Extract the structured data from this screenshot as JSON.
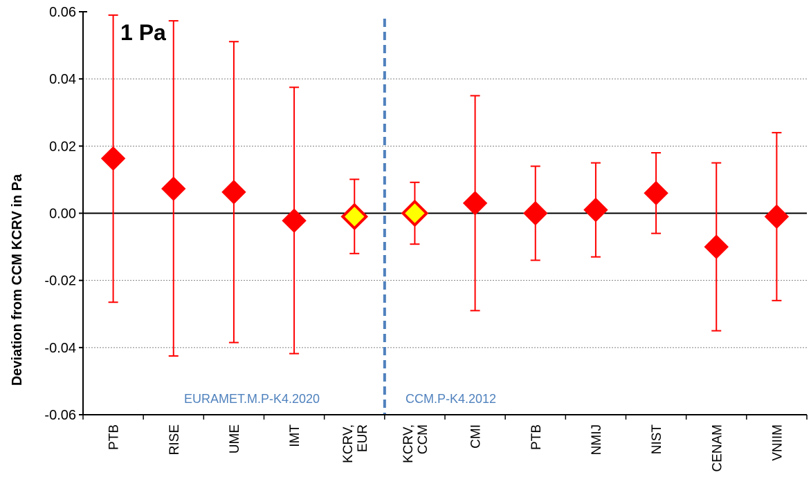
{
  "chart_data": {
    "type": "scatter",
    "title": "1 Pa",
    "ylabel": "Deviation from CCM KCRV in Pa",
    "xlabel": "",
    "ylim": [
      -0.06,
      0.06
    ],
    "yticks": [
      -0.06,
      -0.04,
      -0.02,
      0.0,
      0.02,
      0.04,
      0.06
    ],
    "ytick_labels": [
      "-0.06",
      "-0.04",
      "-0.02",
      "0.00",
      "0.02",
      "0.04",
      "0.06"
    ],
    "grid": "horizontal dotted",
    "categories": [
      {
        "lines": [
          "PTB"
        ]
      },
      {
        "lines": [
          "RISE"
        ]
      },
      {
        "lines": [
          "UME"
        ]
      },
      {
        "lines": [
          "IMT"
        ]
      },
      {
        "lines": [
          "KCRV,",
          "EUR"
        ]
      },
      {
        "lines": [
          "KCRV,",
          "CCM"
        ]
      },
      {
        "lines": [
          "CMI"
        ]
      },
      {
        "lines": [
          "PTB"
        ]
      },
      {
        "lines": [
          "NMIJ"
        ]
      },
      {
        "lines": [
          "NIST"
        ]
      },
      {
        "lines": [
          "CENAM"
        ]
      },
      {
        "lines": [
          "VNIIM"
        ]
      }
    ],
    "points": [
      {
        "y": 0.0163,
        "lo": -0.0265,
        "hi": 0.059,
        "kind": "participant"
      },
      {
        "y": 0.0073,
        "lo": -0.0425,
        "hi": 0.0573,
        "kind": "participant"
      },
      {
        "y": 0.0063,
        "lo": -0.0385,
        "hi": 0.0511,
        "kind": "participant"
      },
      {
        "y": -0.0022,
        "lo": -0.0418,
        "hi": 0.0375,
        "kind": "participant"
      },
      {
        "y": -0.001,
        "lo": -0.012,
        "hi": 0.0101,
        "kind": "kcrv"
      },
      {
        "y": 0.0,
        "lo": -0.0092,
        "hi": 0.0092,
        "kind": "kcrv"
      },
      {
        "y": 0.003,
        "lo": -0.029,
        "hi": 0.035,
        "kind": "participant"
      },
      {
        "y": 0.0,
        "lo": -0.014,
        "hi": 0.014,
        "kind": "participant"
      },
      {
        "y": 0.001,
        "lo": -0.013,
        "hi": 0.015,
        "kind": "participant"
      },
      {
        "y": 0.006,
        "lo": -0.006,
        "hi": 0.018,
        "kind": "participant"
      },
      {
        "y": -0.01,
        "lo": -0.035,
        "hi": 0.015,
        "kind": "participant"
      },
      {
        "y": -0.001,
        "lo": -0.026,
        "hi": 0.024,
        "kind": "participant"
      }
    ],
    "sections": [
      {
        "label": "EURAMET.M.P-K4.2020"
      },
      {
        "label": "CCM.P-K4.2012"
      }
    ],
    "colors": {
      "marker": "#ff0000",
      "errorbar": "#ff0000",
      "kcrv_fill": "#ffff00",
      "divider": "#4f81bd",
      "section_text": "#4f81bd",
      "grid": "#808080",
      "axis": "#000000"
    }
  }
}
